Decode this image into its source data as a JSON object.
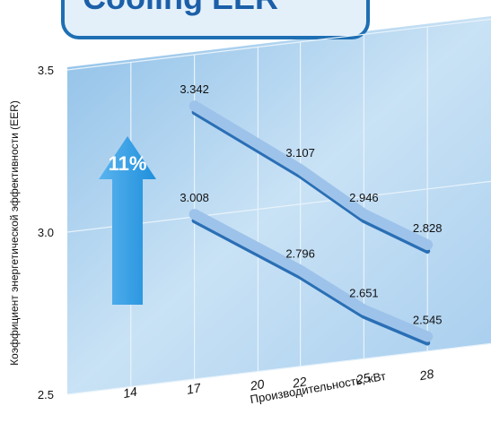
{
  "chart_data": {
    "type": "line",
    "title": "Cooling EER",
    "y_label": "Коэффициент энергетической эффективности (EER)",
    "x_label": "Производительность, кВт",
    "annotation": "11%",
    "x": [
      17,
      22,
      25,
      28
    ],
    "series": [
      {
        "color": "#9ec3ea",
        "values": [
          3.342,
          3.107,
          2.946,
          2.828
        ]
      },
      {
        "color": "#9ec3ea",
        "values": [
          3.008,
          2.796,
          2.651,
          2.545
        ]
      }
    ],
    "xlim": [
      11,
      31
    ],
    "xticks": [
      14,
      17,
      20,
      22,
      25,
      28
    ],
    "ylim": [
      2.5,
      3.5
    ],
    "yticks": [
      {
        "value": 2.5,
        "label": "2.5"
      },
      {
        "value": 3.0,
        "label": "3.0"
      },
      {
        "value": 3.5,
        "label": "3.5"
      }
    ],
    "grid": true
  }
}
